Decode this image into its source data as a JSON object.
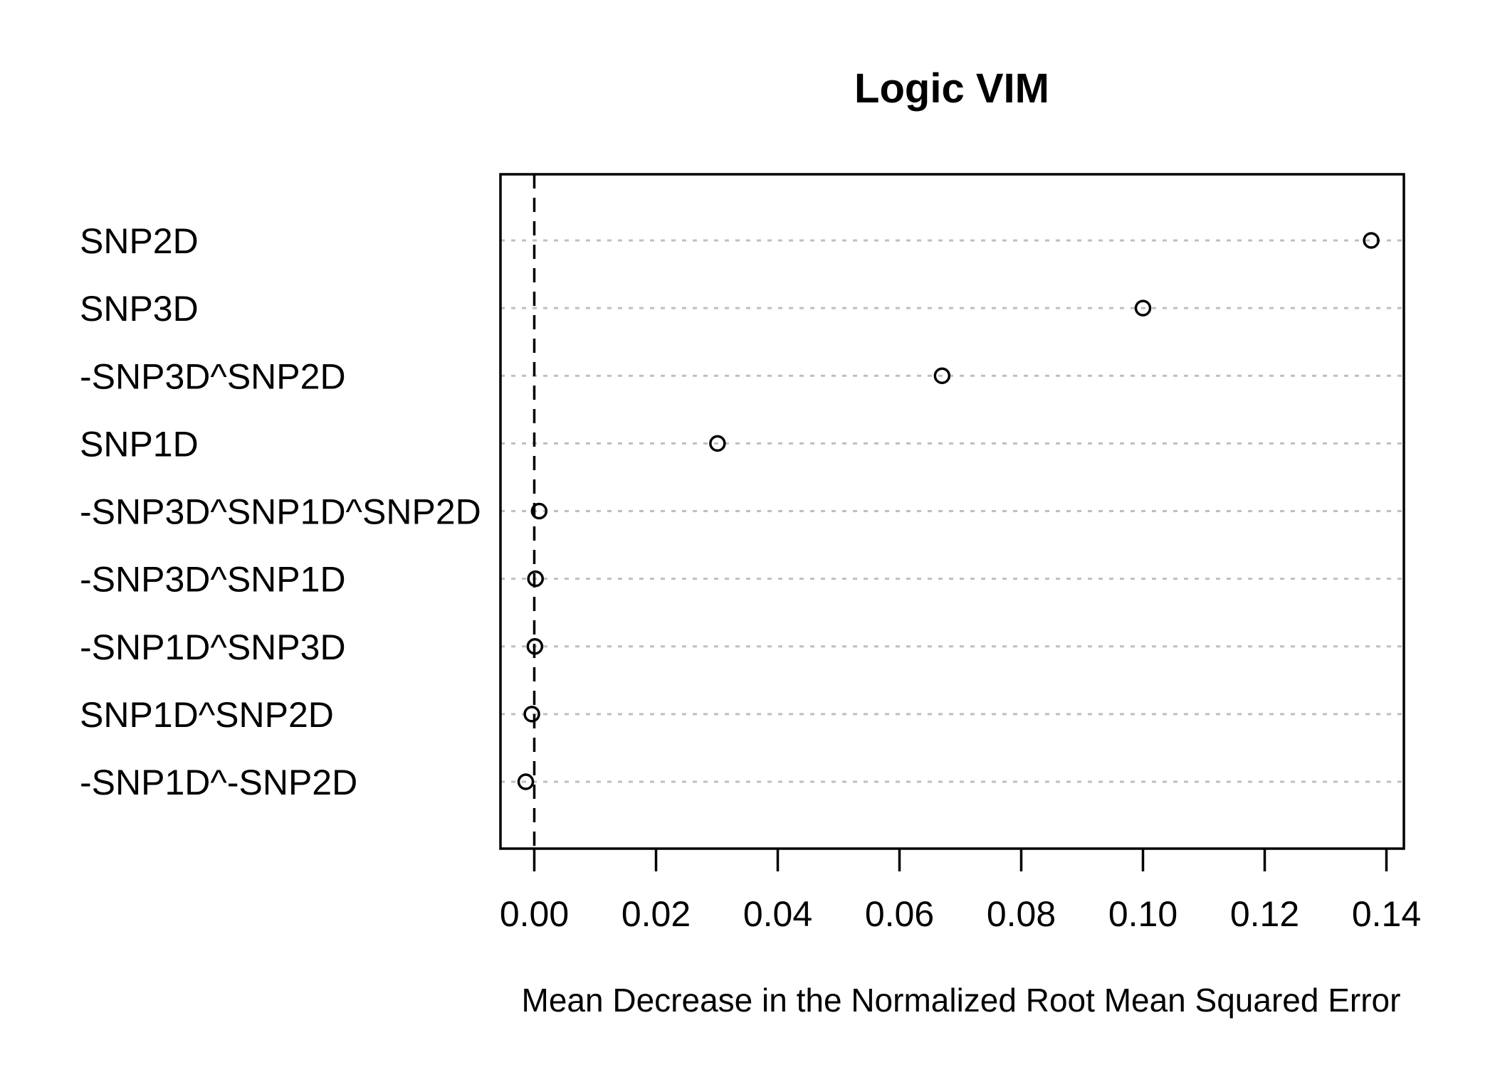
{
  "chart_data": {
    "type": "scatter",
    "variant": "dotchart",
    "title": "Logic VIM",
    "xlabel": "Mean Decrease in the Normalized Root Mean Squared Error",
    "ylabel": "",
    "categories": [
      "SNP2D",
      "SNP3D",
      "-SNP3D^SNP2D",
      "SNP1D",
      "-SNP3D^SNP1D^SNP2D",
      "-SNP3D^SNP1D",
      "-SNP1D^SNP3D",
      "SNP1D^SNP2D",
      "-SNP1D^-SNP2D"
    ],
    "values": [
      0.1375,
      0.1,
      0.067,
      0.0301,
      0.0008,
      0.0002,
      0.0001,
      -0.0004,
      -0.0014
    ],
    "x_ticks": {
      "values": [
        0,
        0.02,
        0.04,
        0.06,
        0.08,
        0.1,
        0.12,
        0.14
      ],
      "labels": [
        "0.00",
        "0.02",
        "0.04",
        "0.06",
        "0.08",
        "0.10",
        "0.12",
        "0.14"
      ]
    },
    "xlim": [
      -0.0056,
      0.1429
    ],
    "reference_line_x": 0,
    "grid": "dotted-horizontal",
    "legend": "none",
    "marker": "open-circle",
    "colors": {
      "marker": "#000000",
      "grid": "#bfbfbf",
      "text": "#000000",
      "reference_line": "#000000",
      "frame": "#000000",
      "background": "#ffffff"
    }
  }
}
